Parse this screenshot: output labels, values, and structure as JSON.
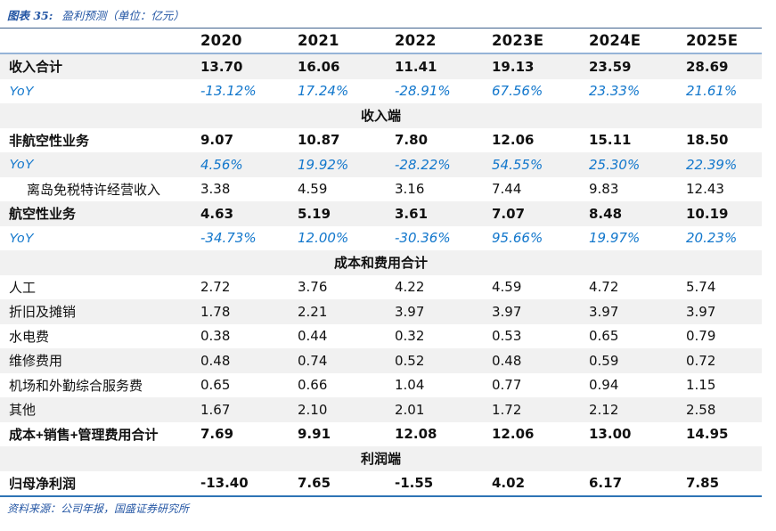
{
  "figure": {
    "prefix": "图表 35:",
    "caption": "盈利预测（单位：亿元）"
  },
  "source_note": "资料来源：公司年报，国盛证券研究所",
  "colors": {
    "yoy_blue": "#1277cc",
    "title_blue": "#2456a4",
    "stripe_gray": "#f1f1f1",
    "table_top_border": "#3f618c",
    "header_underline": "#95b3d7",
    "table_bottom_border": "#2e74b5"
  },
  "table": {
    "columns": [
      "",
      "2020",
      "2021",
      "2022",
      "2023E",
      "2024E",
      "2025E"
    ],
    "rows": [
      {
        "type": "data",
        "style": "bold",
        "label": "收入合计",
        "values": [
          "13.70",
          "16.06",
          "11.41",
          "19.13",
          "23.59",
          "28.69"
        ]
      },
      {
        "type": "data",
        "style": "yoy",
        "label": "YoY",
        "values": [
          "-13.12%",
          "17.24%",
          "-28.91%",
          "67.56%",
          "23.33%",
          "21.61%"
        ]
      },
      {
        "type": "section",
        "label": "收入端"
      },
      {
        "type": "data",
        "style": "bold",
        "label": "非航空性业务",
        "values": [
          "9.07",
          "10.87",
          "7.80",
          "12.06",
          "15.11",
          "18.50"
        ]
      },
      {
        "type": "data",
        "style": "yoy",
        "label": "YoY",
        "values": [
          "4.56%",
          "19.92%",
          "-28.22%",
          "54.55%",
          "25.30%",
          "22.39%"
        ]
      },
      {
        "type": "data",
        "style": "indent",
        "label": "离岛免税特许经营收入",
        "values": [
          "3.38",
          "4.59",
          "3.16",
          "7.44",
          "9.83",
          "12.43"
        ]
      },
      {
        "type": "data",
        "style": "bold",
        "label": "航空性业务",
        "values": [
          "4.63",
          "5.19",
          "3.61",
          "7.07",
          "8.48",
          "10.19"
        ]
      },
      {
        "type": "data",
        "style": "yoy",
        "label": "YoY",
        "values": [
          "-34.73%",
          "12.00%",
          "-30.36%",
          "95.66%",
          "19.97%",
          "20.23%"
        ]
      },
      {
        "type": "section",
        "label": "成本和费用合计"
      },
      {
        "type": "data",
        "style": "normal",
        "label": "人工",
        "values": [
          "2.72",
          "3.76",
          "4.22",
          "4.59",
          "4.72",
          "5.74"
        ]
      },
      {
        "type": "data",
        "style": "normal",
        "label": "折旧及摊销",
        "values": [
          "1.78",
          "2.21",
          "3.97",
          "3.97",
          "3.97",
          "3.97"
        ]
      },
      {
        "type": "data",
        "style": "normal",
        "label": "水电费",
        "values": [
          "0.38",
          "0.44",
          "0.32",
          "0.53",
          "0.65",
          "0.79"
        ]
      },
      {
        "type": "data",
        "style": "normal",
        "label": "维修费用",
        "values": [
          "0.48",
          "0.74",
          "0.52",
          "0.48",
          "0.59",
          "0.72"
        ]
      },
      {
        "type": "data",
        "style": "normal",
        "label": "机场和外勤综合服务费",
        "values": [
          "0.65",
          "0.66",
          "1.04",
          "0.77",
          "0.94",
          "1.15"
        ]
      },
      {
        "type": "data",
        "style": "normal",
        "label": "其他",
        "values": [
          "1.67",
          "2.10",
          "2.01",
          "1.72",
          "2.12",
          "2.58"
        ]
      },
      {
        "type": "data",
        "style": "bold",
        "label": "成本+销售+管理费用合计",
        "values": [
          "7.69",
          "9.91",
          "12.08",
          "12.06",
          "13.00",
          "14.95"
        ]
      },
      {
        "type": "section",
        "label": "利润端"
      },
      {
        "type": "data",
        "style": "bold",
        "label": "归母净利润",
        "values": [
          "-13.40",
          "7.65",
          "-1.55",
          "4.02",
          "6.17",
          "7.85"
        ]
      }
    ]
  }
}
